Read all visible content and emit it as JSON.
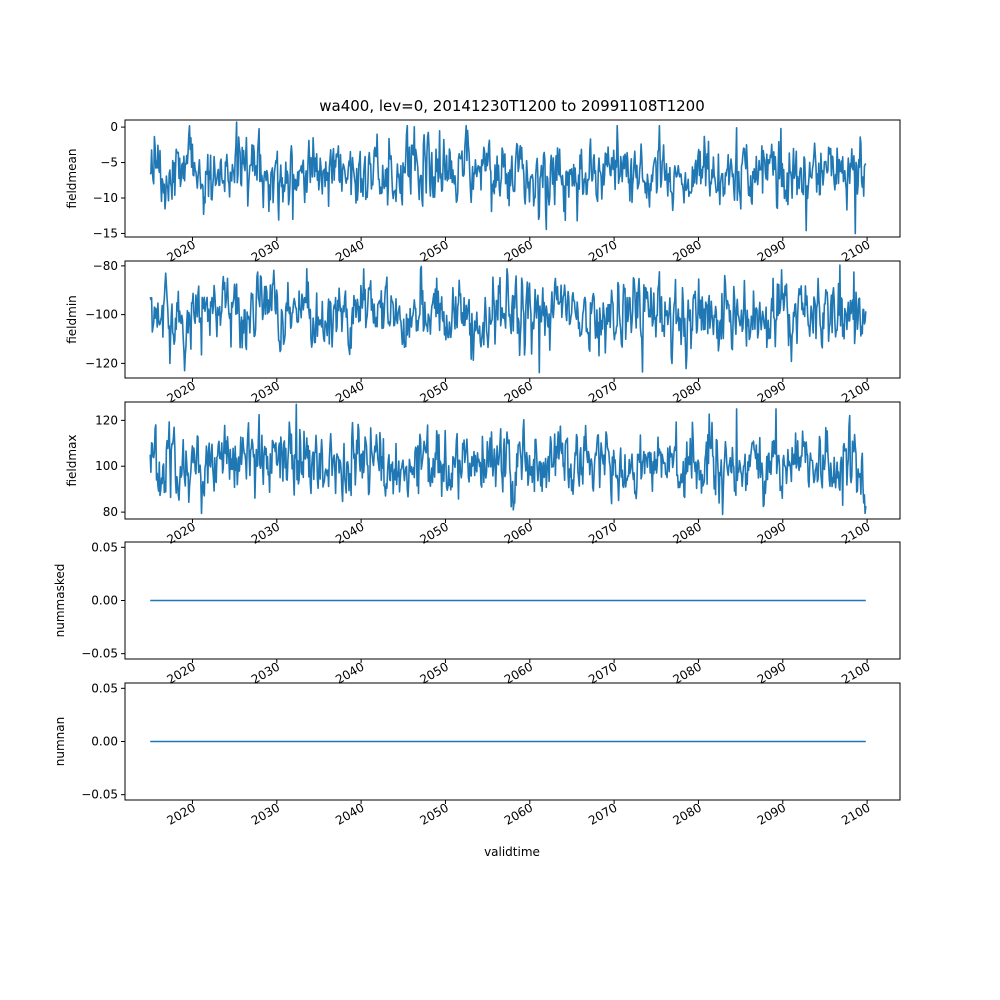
{
  "chart_data": {
    "type": "line",
    "title": "wa400, lev=0, 20141230T1200 to 20991108T1200",
    "xlabel": "validtime",
    "x_range": [
      2014.99,
      2099.85
    ],
    "xlim": [
      2012.0,
      2103.9
    ],
    "x_ticks": [
      2020,
      2030,
      2040,
      2050,
      2060,
      2070,
      2080,
      2090,
      2100
    ],
    "x_tick_labels": [
      "2020",
      "2030",
      "2040",
      "2050",
      "2060",
      "2070",
      "2080",
      "2090",
      "2100"
    ],
    "panels": [
      {
        "ylabel": "fieldmean",
        "ylim": [
          -15.5,
          1.0
        ],
        "y_ticks": [
          0,
          -5,
          -10,
          -15
        ],
        "y_tick_labels": [
          "0",
          "−5",
          "−10",
          "−15"
        ],
        "approx_mean": -6.5,
        "approx_min": -15.0,
        "approx_max": 0.7,
        "peaks": [
          {
            "x": 2025.2,
            "y": 0.7
          },
          {
            "x": 2031.9,
            "y": -13.0
          },
          {
            "x": 2041.9,
            "y": -1.0
          },
          {
            "x": 2065.6,
            "y": -13.2
          },
          {
            "x": 2084.5,
            "y": -0.1
          },
          {
            "x": 2089.8,
            "y": -0.2
          },
          {
            "x": 2092.8,
            "y": -14.6
          },
          {
            "x": 2098.6,
            "y": -15.0
          }
        ]
      },
      {
        "ylabel": "fieldmin",
        "ylim": [
          -126,
          -78
        ],
        "y_ticks": [
          -80,
          -100,
          -120
        ],
        "y_tick_labels": [
          "−80",
          "−100",
          "−120"
        ],
        "approx_mean": -100.0,
        "approx_min": -123.8,
        "approx_max": -79.7,
        "peaks": [
          {
            "x": 2016.8,
            "y": -83.0
          },
          {
            "x": 2017.3,
            "y": -120.0
          },
          {
            "x": 2061.1,
            "y": -123.8
          },
          {
            "x": 2073.4,
            "y": -123.5
          },
          {
            "x": 2096.8,
            "y": -79.7
          },
          {
            "x": 2098.4,
            "y": -82.5
          }
        ]
      },
      {
        "ylabel": "fieldmax",
        "ylim": [
          77,
          128
        ],
        "y_ticks": [
          80,
          100,
          120
        ],
        "y_tick_labels": [
          "80",
          "100",
          "120"
        ],
        "approx_mean": 101.0,
        "approx_min": 79.0,
        "approx_max": 127.0,
        "peaks": [
          {
            "x": 2032.3,
            "y": 127.0
          },
          {
            "x": 2082.9,
            "y": 79.0
          },
          {
            "x": 2084.5,
            "y": 125.0
          },
          {
            "x": 2089.2,
            "y": 125.0
          },
          {
            "x": 2097.1,
            "y": 83.0
          }
        ]
      },
      {
        "ylabel": "nummasked",
        "ylim": [
          -0.055,
          0.055
        ],
        "y_ticks": [
          0.05,
          0.0,
          -0.05
        ],
        "y_tick_labels": [
          "0.05",
          "0.00",
          "−0.05"
        ],
        "constant_value": 0.0
      },
      {
        "ylabel": "numnan",
        "ylim": [
          -0.055,
          0.055
        ],
        "y_ticks": [
          0.05,
          0.0,
          -0.05
        ],
        "y_tick_labels": [
          "0.05",
          "0.00",
          "−0.05"
        ],
        "constant_value": 0.0
      }
    ],
    "grid": false,
    "line_color": "#1f77b4"
  }
}
